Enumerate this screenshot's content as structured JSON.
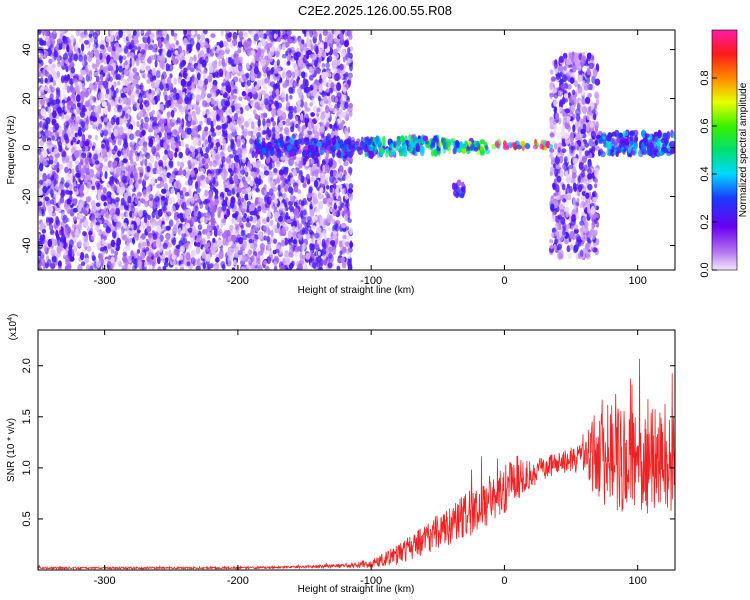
{
  "title": "C2E2.2025.126.00.55.R08",
  "chart_data": [
    {
      "type": "heatmap",
      "xlabel": "Height of straight line (km)",
      "ylabel": "Frequency (Hz)",
      "xlim": [
        -350,
        128
      ],
      "ylim": [
        -50,
        48
      ],
      "xticks": [
        -300,
        -200,
        -100,
        0,
        100
      ],
      "yticks": [
        -40,
        -20,
        0,
        20,
        40
      ],
      "xtick_labels": [
        "-300",
        "-200",
        "-100",
        "0",
        "100"
      ],
      "ytick_labels": [
        "-40",
        "-20",
        "0",
        "20",
        "40"
      ],
      "colorbar": {
        "label": "Normalized spectral amplitude",
        "range": [
          0,
          1
        ],
        "ticks": [
          "0.0",
          "0.2",
          "0.4",
          "0.6",
          "0.8"
        ],
        "tick_values": [
          0,
          0.2,
          0.4,
          0.6,
          0.8
        ]
      },
      "regions": [
        {
          "x": [
            -350,
            -115
          ],
          "freq": [
            -50,
            48
          ],
          "amplitude": 0.12,
          "description_level": "broadband"
        },
        {
          "x": [
            -190,
            -95
          ],
          "freq": [
            -3,
            3
          ],
          "amplitude": 0.3
        },
        {
          "x": [
            -105,
            -50
          ],
          "freq": [
            -3,
            4
          ],
          "amplitude": 0.45
        },
        {
          "x": [
            -50,
            -10
          ],
          "freq": [
            -2,
            3
          ],
          "amplitude": 0.55
        },
        {
          "x": [
            -10,
            35
          ],
          "freq": [
            0,
            2
          ],
          "amplitude": 0.9
        },
        {
          "x": [
            35,
            70
          ],
          "freq": [
            -45,
            38
          ],
          "amplitude": 0.15
        },
        {
          "x": [
            70,
            128
          ],
          "freq": [
            -3,
            6
          ],
          "amplitude": 0.35
        },
        {
          "x": [
            -38,
            -30
          ],
          "freq": [
            -20,
            -14
          ],
          "amplitude": 0.25
        }
      ]
    },
    {
      "type": "line",
      "xlabel": "Height of straight line (km)",
      "ylabel": "SNR (10 * v/v)",
      "yscale_label": "(x10",
      "yscale_exp": "4",
      "yscale_close": ")",
      "xlim": [
        -350,
        128
      ],
      "ylim": [
        0,
        2.35
      ],
      "xticks": [
        -300,
        -200,
        -100,
        0,
        100
      ],
      "yticks": [
        0.5,
        1.0,
        1.5,
        2.0
      ],
      "xtick_labels": [
        "-300",
        "-200",
        "-100",
        "0",
        "100"
      ],
      "ytick_labels": [
        "0.5",
        "1.0",
        "1.5",
        "2.0"
      ],
      "series": [
        {
          "color": "#ee2222",
          "x": [
            -350,
            -300,
            -250,
            -200,
            -150,
            -120,
            -100,
            -80,
            -60,
            -40,
            -20,
            0,
            20,
            40,
            60,
            70,
            80,
            100,
            120,
            128
          ],
          "y": [
            0.02,
            0.02,
            0.02,
            0.02,
            0.03,
            0.04,
            0.06,
            0.15,
            0.3,
            0.45,
            0.6,
            0.8,
            0.95,
            1.05,
            1.1,
            1.15,
            1.2,
            1.0,
            1.1,
            1.0
          ],
          "spread": [
            0.01,
            0.01,
            0.01,
            0.01,
            0.01,
            0.02,
            0.04,
            0.1,
            0.15,
            0.2,
            0.25,
            0.25,
            0.15,
            0.1,
            0.15,
            0.5,
            0.6,
            0.5,
            0.55,
            0.5
          ]
        }
      ]
    }
  ]
}
